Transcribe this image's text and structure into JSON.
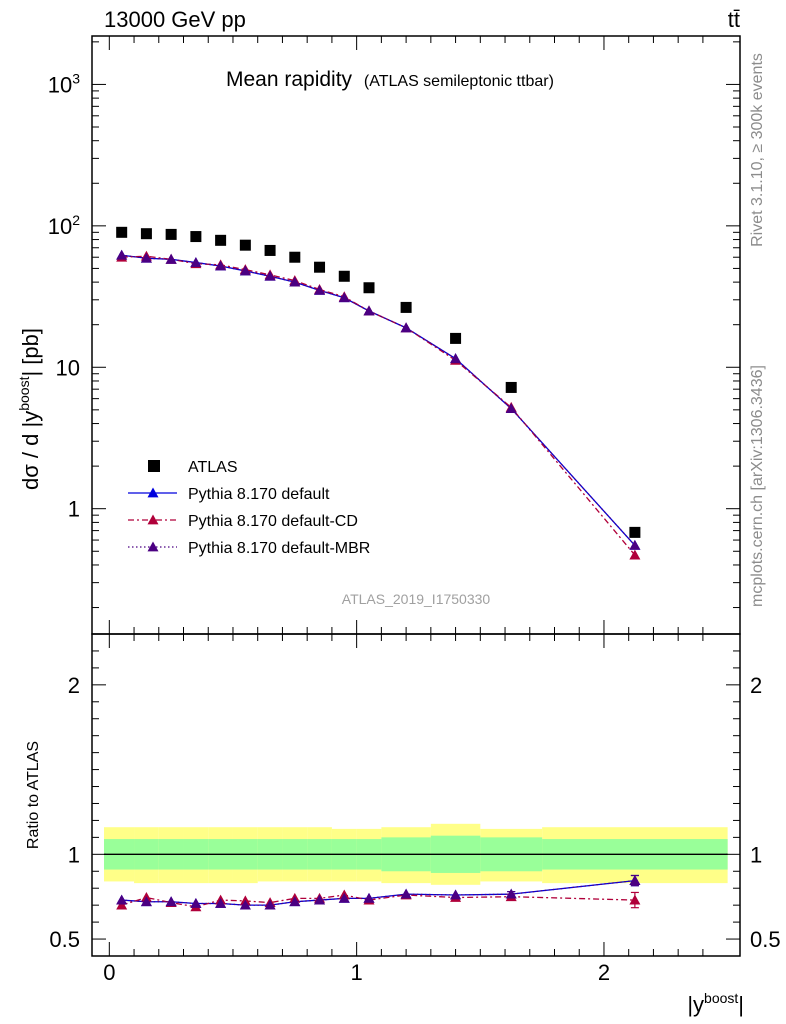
{
  "header": {
    "left_label": "13000 GeV pp",
    "right_label": "tt̄"
  },
  "side_labels": {
    "rivet": "Rivet 3.1.10, ≥ 300k events",
    "mcplots": "mcplots.cern.ch [arXiv:1306.3436]"
  },
  "chart_data": [
    {
      "panel": "main",
      "type": "scatter",
      "title": "Mean rapidity",
      "subtitle": "(ATLAS semileptonic ttbar)",
      "ylabel_main": "dσ / d |y",
      "ylabel_sup": "boost",
      "ylabel_tail": "| [pb]",
      "yscale": "log",
      "ylim": [
        0.13,
        2200
      ],
      "xlim": [
        -0.07,
        2.55
      ],
      "ytick_labels": [
        {
          "value": 1000,
          "base": "10",
          "exp": "3"
        },
        {
          "value": 100,
          "base": "10",
          "exp": "2"
        },
        {
          "value": 10,
          "base": "10",
          "exp": ""
        },
        {
          "value": 1,
          "base": "1",
          "exp": ""
        }
      ],
      "watermark": "ATLAS_2019_I1750330",
      "x": [
        0.05,
        0.15,
        0.25,
        0.35,
        0.45,
        0.55,
        0.65,
        0.75,
        0.85,
        0.95,
        1.05,
        1.2,
        1.4,
        1.625,
        2.125
      ],
      "series": [
        {
          "name": "ATLAS",
          "marker": "square",
          "color": "#000000",
          "values": [
            90,
            88,
            87,
            84,
            79,
            73,
            67,
            60,
            51,
            44,
            36.5,
            26.5,
            16,
            7.2,
            0.68
          ]
        },
        {
          "name": "Pythia 8.170 default",
          "marker": "triangle",
          "line": "solid",
          "color": "#0000dd",
          "values": [
            62,
            59,
            58,
            55,
            52,
            48,
            44,
            40,
            35,
            31,
            25,
            19,
            11.5,
            5.1,
            0.55
          ]
        },
        {
          "name": "Pythia 8.170 default-CD",
          "marker": "triangle",
          "line": "dashdot",
          "color": "#b0003a",
          "values": [
            60,
            61,
            58,
            54,
            53,
            49,
            45,
            41,
            35.5,
            31.5,
            25,
            19,
            11.2,
            5.2,
            0.47
          ]
        },
        {
          "name": "Pythia 8.170 default-MBR",
          "marker": "triangle",
          "line": "dotted",
          "color": "#4b0082",
          "values": [
            62,
            59,
            58,
            55,
            52,
            48,
            44,
            40,
            35,
            31,
            25,
            19,
            11.5,
            5.1,
            0.55
          ]
        }
      ]
    },
    {
      "panel": "ratio",
      "type": "scatter",
      "ylabel": "Ratio to ATLAS",
      "xlabel_main": "|y",
      "xlabel_sup": "boost",
      "xlabel_tail": "|",
      "ylim": [
        0.4,
        2.3
      ],
      "xlim": [
        -0.07,
        2.55
      ],
      "xtick_labels": [
        {
          "value": 0,
          "label": "0"
        },
        {
          "value": 1,
          "label": "1"
        },
        {
          "value": 2,
          "label": "2"
        }
      ],
      "ytick_labels": [
        {
          "value": 0.5,
          "label": "0.5"
        },
        {
          "value": 1,
          "label": "1"
        },
        {
          "value": 2,
          "label": "2"
        }
      ],
      "reference": 1.0,
      "bins": [
        0,
        0.1,
        0.2,
        0.3,
        0.4,
        0.5,
        0.6,
        0.7,
        0.8,
        0.9,
        1.0,
        1.1,
        1.3,
        1.5,
        1.75,
        2.5
      ],
      "band_stat": [
        [
          0.91,
          1.09
        ],
        [
          0.91,
          1.09
        ],
        [
          0.91,
          1.09
        ],
        [
          0.91,
          1.09
        ],
        [
          0.91,
          1.09
        ],
        [
          0.91,
          1.09
        ],
        [
          0.91,
          1.09
        ],
        [
          0.91,
          1.09
        ],
        [
          0.91,
          1.09
        ],
        [
          0.91,
          1.09
        ],
        [
          0.91,
          1.09
        ],
        [
          0.9,
          1.1
        ],
        [
          0.89,
          1.11
        ],
        [
          0.9,
          1.1
        ],
        [
          0.91,
          1.09
        ]
      ],
      "band_total": [
        [
          0.84,
          1.16
        ],
        [
          0.83,
          1.16
        ],
        [
          0.83,
          1.16
        ],
        [
          0.83,
          1.16
        ],
        [
          0.83,
          1.16
        ],
        [
          0.83,
          1.16
        ],
        [
          0.84,
          1.16
        ],
        [
          0.84,
          1.16
        ],
        [
          0.84,
          1.16
        ],
        [
          0.84,
          1.15
        ],
        [
          0.84,
          1.15
        ],
        [
          0.83,
          1.16
        ],
        [
          0.82,
          1.18
        ],
        [
          0.84,
          1.15
        ],
        [
          0.83,
          1.16
        ]
      ],
      "x": [
        0.05,
        0.15,
        0.25,
        0.35,
        0.45,
        0.55,
        0.65,
        0.75,
        0.85,
        0.95,
        1.05,
        1.2,
        1.4,
        1.625,
        2.125
      ],
      "series": [
        {
          "name": "Pythia 8.170 default",
          "marker": "triangle",
          "line": "solid",
          "color": "#0000dd",
          "values": [
            0.73,
            0.72,
            0.72,
            0.71,
            0.71,
            0.7,
            0.7,
            0.72,
            0.73,
            0.74,
            0.74,
            0.765,
            0.76,
            0.765,
            0.845
          ],
          "errors": [
            0,
            0,
            0,
            0,
            0,
            0,
            0,
            0,
            0,
            0,
            0,
            0,
            0,
            0.015,
            0.03
          ]
        },
        {
          "name": "Pythia 8.170 default-CD",
          "marker": "triangle",
          "line": "dashdot",
          "color": "#b0003a",
          "values": [
            0.7,
            0.745,
            0.715,
            0.69,
            0.73,
            0.725,
            0.715,
            0.74,
            0.74,
            0.76,
            0.73,
            0.76,
            0.745,
            0.75,
            0.73
          ],
          "errors": [
            0,
            0,
            0,
            0,
            0,
            0,
            0,
            0,
            0,
            0,
            0,
            0,
            0,
            0.015,
            0.045
          ]
        },
        {
          "name": "Pythia 8.170 default-MBR",
          "marker": "triangle",
          "line": "dotted",
          "color": "#4b0082",
          "values": [
            0.73,
            0.72,
            0.72,
            0.71,
            0.71,
            0.7,
            0.7,
            0.72,
            0.73,
            0.74,
            0.74,
            0.765,
            0.76,
            0.765,
            0.845
          ],
          "errors": [
            0,
            0,
            0,
            0,
            0,
            0,
            0,
            0,
            0,
            0,
            0,
            0,
            0,
            0.015,
            0.03
          ]
        }
      ]
    }
  ],
  "colors": {
    "stat_band": "#99ff99",
    "total_band": "#ffff88",
    "axis": "#000000",
    "side_text": "#8c8c8c"
  }
}
